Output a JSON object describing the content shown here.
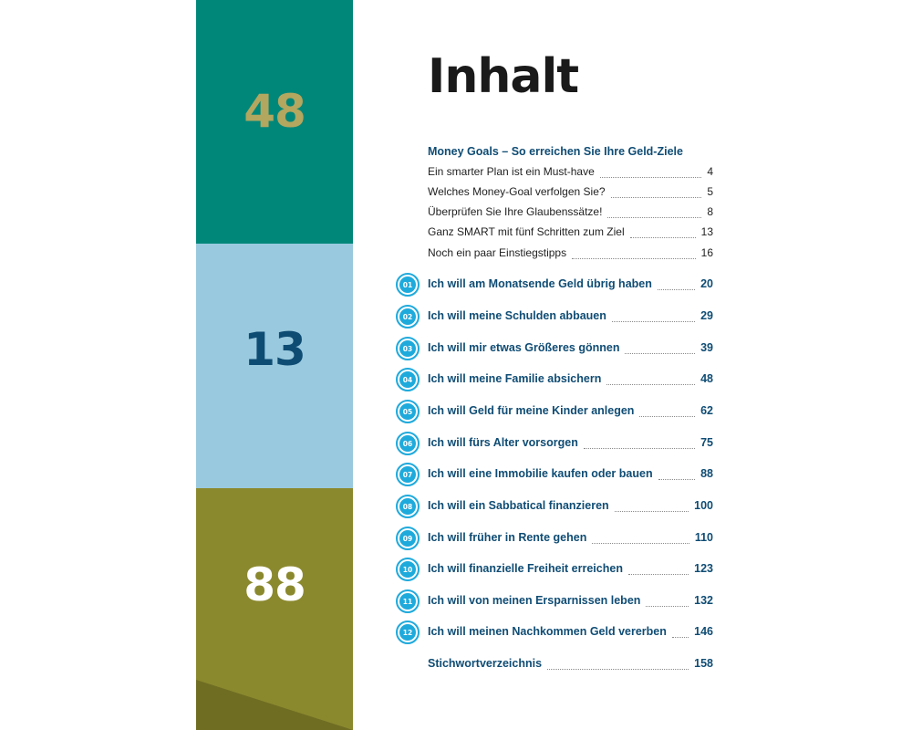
{
  "sidebar": {
    "blocks": [
      {
        "number": "48",
        "color": "#00877a"
      },
      {
        "number": "13",
        "color": "#99c9de"
      },
      {
        "number": "88",
        "color": "#8b892e"
      }
    ]
  },
  "page": {
    "title": "Inhalt"
  },
  "intro": {
    "heading": "Money Goals – So erreichen Sie Ihre Geld-Ziele",
    "entries": [
      {
        "label": "Ein smarter Plan ist ein Must-have",
        "page": "4"
      },
      {
        "label": "Welches Money-Goal verfolgen Sie?",
        "page": "5"
      },
      {
        "label": "Überprüfen Sie Ihre Glaubenssätze!",
        "page": "8"
      },
      {
        "label": "Ganz SMART mit fünf Schritten zum Ziel",
        "page": "13"
      },
      {
        "label": "Noch ein paar Einstiegstipps",
        "page": "16"
      }
    ]
  },
  "chapters": [
    {
      "num": "01",
      "label": "Ich will am Monatsende Geld übrig haben",
      "page": "20"
    },
    {
      "num": "02",
      "label": "Ich will meine Schulden abbauen",
      "page": "29"
    },
    {
      "num": "03",
      "label": "Ich will mir etwas Größeres gönnen",
      "page": "39"
    },
    {
      "num": "04",
      "label": "Ich will meine Familie absichern",
      "page": "48"
    },
    {
      "num": "05",
      "label": "Ich will Geld für meine Kinder anlegen",
      "page": "62"
    },
    {
      "num": "06",
      "label": "Ich will fürs Alter vorsorgen",
      "page": "75"
    },
    {
      "num": "07",
      "label": "Ich will eine Immobilie kaufen oder bauen",
      "page": "88"
    },
    {
      "num": "08",
      "label": "Ich will ein Sabbatical finanzieren",
      "page": "100"
    },
    {
      "num": "09",
      "label": "Ich will früher in Rente gehen",
      "page": "110"
    },
    {
      "num": "10",
      "label": "Ich will finanzielle Freiheit erreichen",
      "page": "123"
    },
    {
      "num": "11",
      "label": "Ich will von meinen Ersparnissen leben",
      "page": "132"
    },
    {
      "num": "12",
      "label": "Ich will meinen Nachkommen Geld vererben",
      "page": "146"
    }
  ],
  "index": {
    "label": "Stichwortverzeichnis",
    "page": "158"
  },
  "colors": {
    "heading_blue": "#0f4c74",
    "badge_cyan": "#1faadc",
    "teal": "#00877a",
    "light_blue": "#99c9de",
    "olive": "#8b892e",
    "gold": "#b3a65f"
  }
}
